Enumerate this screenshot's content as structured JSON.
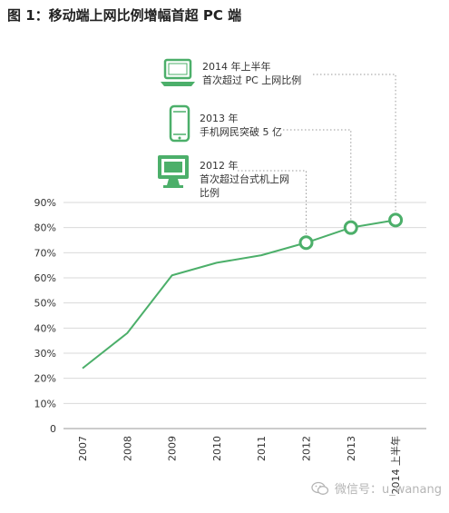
{
  "chart_data": {
    "type": "line",
    "title": "图 1：移动端上网比例增幅首超 PC 端",
    "categories": [
      "2007",
      "2008",
      "2009",
      "2010",
      "2011",
      "2012",
      "2013",
      "2014 上半年"
    ],
    "series": [
      {
        "values": [
          24,
          38,
          61,
          66,
          69,
          74,
          80,
          83
        ]
      }
    ],
    "y_ticks": [
      "0",
      "10%",
      "20%",
      "30%",
      "40%",
      "50%",
      "60%",
      "70%",
      "80%",
      "90%"
    ],
    "ylim": [
      0,
      90
    ],
    "grid": true,
    "line_color": "#4caf6a",
    "annotations": [
      {
        "category": "2012",
        "line1": "2012 年",
        "line2": "首次超过台式机上网",
        "line3": "比例",
        "icon": "desktop-monitor-icon"
      },
      {
        "category": "2013",
        "line1": "2013 年",
        "line2": "手机网民突破 5 亿",
        "line3": "",
        "icon": "smartphone-icon"
      },
      {
        "category": "2014 上半年",
        "line1": "2014 年上半年",
        "line2": "首次超过 PC 上网比例",
        "line3": "",
        "icon": "laptop-icon"
      }
    ]
  },
  "watermark": {
    "text": "微信号：u_wanang",
    "icon": "wechat-icon"
  }
}
